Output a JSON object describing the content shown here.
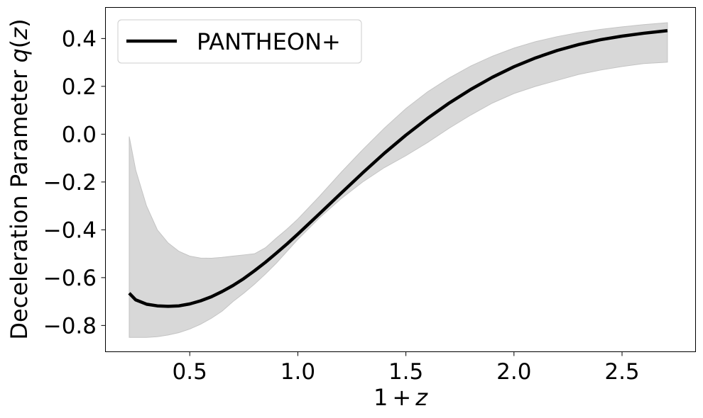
{
  "chart_data": {
    "type": "line",
    "xlabel": "1 + z",
    "ylabel": "Deceleration Parameter q(z)",
    "xlim": [
      0.11,
      2.84
    ],
    "ylim": [
      -0.91,
      0.53
    ],
    "xticks": [
      0.5,
      1.0,
      1.5,
      2.0,
      2.5
    ],
    "xtick_labels": [
      "0.5",
      "1.0",
      "1.5",
      "2.0",
      "2.5"
    ],
    "yticks": [
      -0.8,
      -0.6,
      -0.4,
      -0.2,
      0.0,
      0.2,
      0.4
    ],
    "ytick_labels": [
      "−0.8",
      "−0.6",
      "−0.4",
      "−0.2",
      "0.0",
      "0.2",
      "0.4"
    ],
    "grid": false,
    "legend": {
      "placement": "top-left",
      "entries": [
        "PANTHEON+"
      ]
    },
    "colors": {
      "line": "#000000",
      "band": "#d8d8d8",
      "band_edge": "#c4c4c4"
    },
    "series": [
      {
        "name": "PANTHEON+",
        "x": [
          0.22,
          0.25,
          0.3,
          0.35,
          0.4,
          0.45,
          0.5,
          0.55,
          0.6,
          0.65,
          0.7,
          0.75,
          0.8,
          0.85,
          0.9,
          0.95,
          1.0,
          1.1,
          1.2,
          1.3,
          1.4,
          1.5,
          1.6,
          1.7,
          1.8,
          1.9,
          2.0,
          2.1,
          2.2,
          2.3,
          2.4,
          2.5,
          2.6,
          2.71
        ],
        "y": [
          -0.665,
          -0.693,
          -0.711,
          -0.718,
          -0.72,
          -0.718,
          -0.71,
          -0.697,
          -0.68,
          -0.658,
          -0.633,
          -0.604,
          -0.571,
          -0.536,
          -0.498,
          -0.459,
          -0.418,
          -0.333,
          -0.247,
          -0.162,
          -0.08,
          -0.004,
          0.066,
          0.13,
          0.187,
          0.238,
          0.282,
          0.319,
          0.35,
          0.375,
          0.395,
          0.41,
          0.422,
          0.433
        ],
        "lower": [
          -0.85,
          -0.85,
          -0.85,
          -0.847,
          -0.84,
          -0.83,
          -0.815,
          -0.795,
          -0.77,
          -0.74,
          -0.7,
          -0.665,
          -0.627,
          -0.585,
          -0.54,
          -0.49,
          -0.44,
          -0.35,
          -0.27,
          -0.2,
          -0.14,
          -0.09,
          -0.035,
          0.025,
          0.08,
          0.13,
          0.17,
          0.2,
          0.225,
          0.25,
          0.268,
          0.283,
          0.295,
          0.301
        ],
        "upper": [
          -0.01,
          -0.15,
          -0.3,
          -0.4,
          -0.455,
          -0.49,
          -0.51,
          -0.518,
          -0.519,
          -0.515,
          -0.51,
          -0.505,
          -0.5,
          -0.475,
          -0.435,
          -0.397,
          -0.355,
          -0.26,
          -0.16,
          -0.065,
          0.025,
          0.107,
          0.177,
          0.235,
          0.285,
          0.326,
          0.36,
          0.387,
          0.408,
          0.425,
          0.438,
          0.449,
          0.458,
          0.466
        ]
      }
    ]
  }
}
